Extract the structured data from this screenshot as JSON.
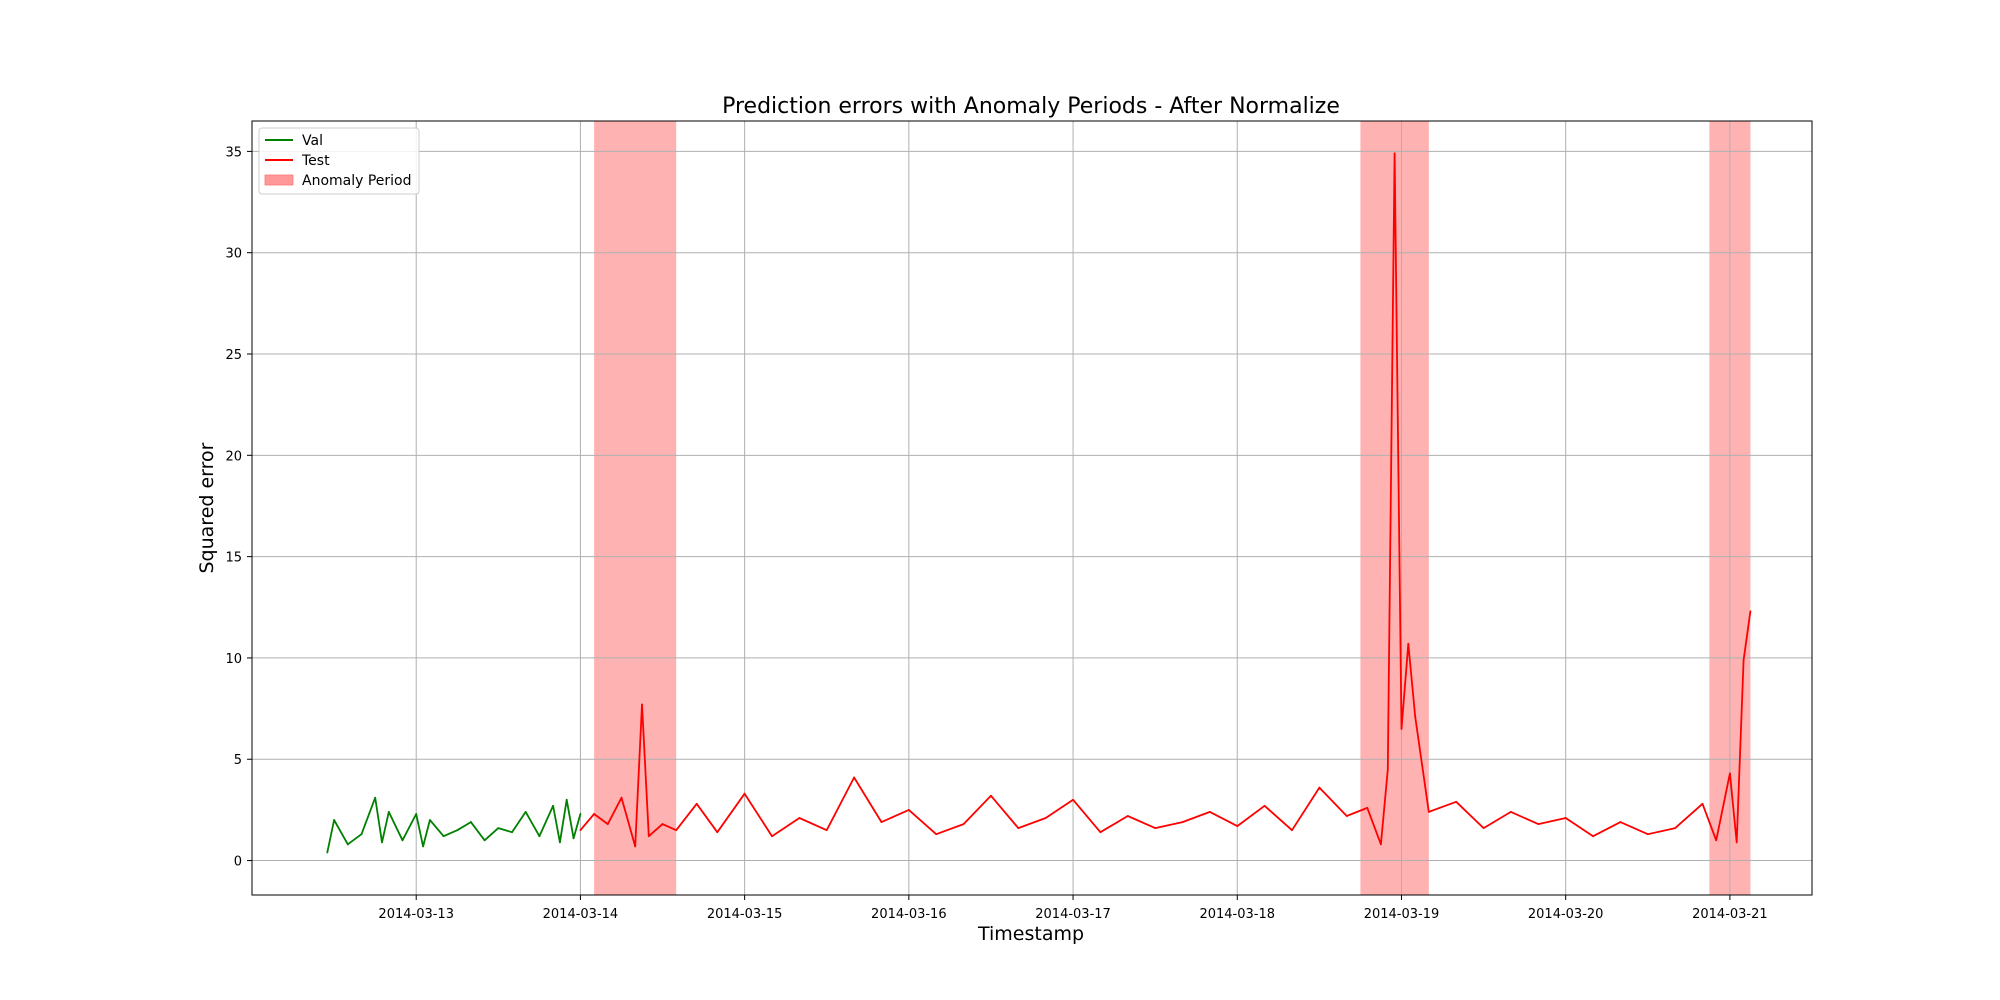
{
  "chart_data": {
    "type": "line",
    "title": "Prediction errors with Anomaly Periods - After Normalize",
    "xlabel": "Timestamp",
    "ylabel": "Squared error",
    "xlim": [
      "2014-03-12T00:00",
      "2014-03-21T12:00"
    ],
    "ylim": [
      -1.7,
      36.5
    ],
    "grid": true,
    "legend_position": "top-left",
    "x_ticks": [
      "2014-03-13",
      "2014-03-14",
      "2014-03-15",
      "2014-03-16",
      "2014-03-17",
      "2014-03-18",
      "2014-03-19",
      "2014-03-20",
      "2014-03-21"
    ],
    "y_ticks": [
      0,
      5,
      10,
      15,
      20,
      25,
      30,
      35
    ],
    "legend": [
      {
        "label": "Val",
        "kind": "line",
        "color": "#008000"
      },
      {
        "label": "Test",
        "kind": "line",
        "color": "#ff0000"
      },
      {
        "label": "Anomaly Period",
        "kind": "patch",
        "color": "#ff9999"
      }
    ],
    "anomaly_periods": [
      {
        "start": "2014-03-14T02:00",
        "end": "2014-03-14T14:00"
      },
      {
        "start": "2014-03-18T18:00",
        "end": "2014-03-19T04:00"
      },
      {
        "start": "2014-03-20T21:00",
        "end": "2014-03-21T03:00"
      }
    ],
    "series": [
      {
        "name": "Val",
        "color": "#008000",
        "x": [
          "2014-03-12T11:00",
          "2014-03-12T12:00",
          "2014-03-12T14:00",
          "2014-03-12T16:00",
          "2014-03-12T18:00",
          "2014-03-12T19:00",
          "2014-03-12T20:00",
          "2014-03-12T22:00",
          "2014-03-13T00:00",
          "2014-03-13T01:00",
          "2014-03-13T02:00",
          "2014-03-13T04:00",
          "2014-03-13T06:00",
          "2014-03-13T08:00",
          "2014-03-13T10:00",
          "2014-03-13T12:00",
          "2014-03-13T14:00",
          "2014-03-13T16:00",
          "2014-03-13T18:00",
          "2014-03-13T20:00",
          "2014-03-13T21:00",
          "2014-03-13T22:00",
          "2014-03-13T23:00",
          "2014-03-14T00:00"
        ],
        "y": [
          0.4,
          2.0,
          0.8,
          1.3,
          3.1,
          0.9,
          2.4,
          1.0,
          2.3,
          0.7,
          2.0,
          1.2,
          1.5,
          1.9,
          1.0,
          1.6,
          1.4,
          2.4,
          1.2,
          2.7,
          0.9,
          3.0,
          1.1,
          2.3
        ]
      },
      {
        "name": "Test",
        "color": "#ff0000",
        "x": [
          "2014-03-14T00:00",
          "2014-03-14T02:00",
          "2014-03-14T04:00",
          "2014-03-14T06:00",
          "2014-03-14T08:00",
          "2014-03-14T09:00",
          "2014-03-14T10:00",
          "2014-03-14T12:00",
          "2014-03-14T14:00",
          "2014-03-14T17:00",
          "2014-03-14T20:00",
          "2014-03-15T00:00",
          "2014-03-15T04:00",
          "2014-03-15T08:00",
          "2014-03-15T12:00",
          "2014-03-15T16:00",
          "2014-03-15T20:00",
          "2014-03-16T00:00",
          "2014-03-16T04:00",
          "2014-03-16T08:00",
          "2014-03-16T12:00",
          "2014-03-16T16:00",
          "2014-03-16T20:00",
          "2014-03-17T00:00",
          "2014-03-17T04:00",
          "2014-03-17T08:00",
          "2014-03-17T12:00",
          "2014-03-17T16:00",
          "2014-03-17T20:00",
          "2014-03-18T00:00",
          "2014-03-18T04:00",
          "2014-03-18T08:00",
          "2014-03-18T12:00",
          "2014-03-18T16:00",
          "2014-03-18T19:00",
          "2014-03-18T21:00",
          "2014-03-18T22:00",
          "2014-03-18T23:00",
          "2014-03-19T00:00",
          "2014-03-19T01:00",
          "2014-03-19T02:00",
          "2014-03-19T04:00",
          "2014-03-19T08:00",
          "2014-03-19T12:00",
          "2014-03-19T16:00",
          "2014-03-19T20:00",
          "2014-03-20T00:00",
          "2014-03-20T04:00",
          "2014-03-20T08:00",
          "2014-03-20T12:00",
          "2014-03-20T16:00",
          "2014-03-20T20:00",
          "2014-03-20T22:00",
          "2014-03-21T00:00",
          "2014-03-21T01:00",
          "2014-03-21T02:00",
          "2014-03-21T03:00"
        ],
        "y": [
          1.5,
          2.3,
          1.8,
          3.1,
          0.7,
          7.7,
          1.2,
          1.8,
          1.5,
          2.8,
          1.4,
          3.3,
          1.2,
          2.1,
          1.5,
          4.1,
          1.9,
          2.5,
          1.3,
          1.8,
          3.2,
          1.6,
          2.1,
          3.0,
          1.4,
          2.2,
          1.6,
          1.9,
          2.4,
          1.7,
          2.7,
          1.5,
          3.6,
          2.2,
          2.6,
          0.8,
          4.5,
          34.9,
          6.5,
          10.7,
          7.1,
          2.4,
          2.9,
          1.6,
          2.4,
          1.8,
          2.1,
          1.2,
          1.9,
          1.3,
          1.6,
          2.8,
          1.0,
          4.3,
          0.9,
          9.9,
          12.3
        ]
      }
    ]
  }
}
